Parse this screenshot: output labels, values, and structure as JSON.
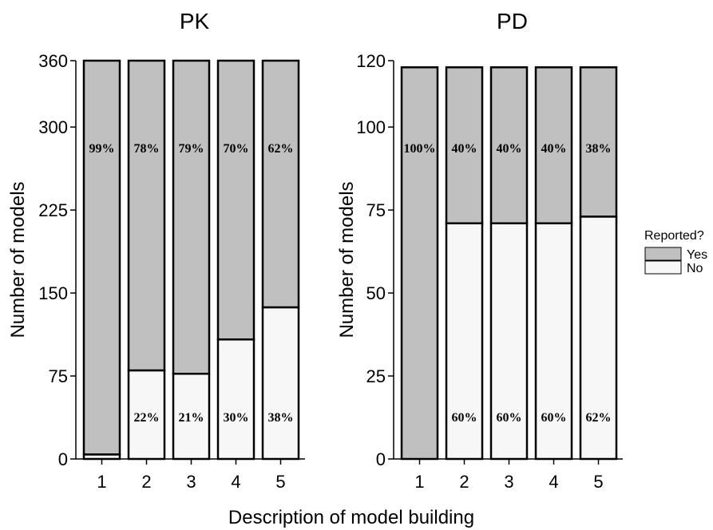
{
  "colors": {
    "yes": "#c0c0c0",
    "no": "#f7f7f7",
    "stroke": "#000000"
  },
  "xlabel": "Description of model building",
  "legend": {
    "title": "Reported?",
    "items": [
      {
        "label": "Yes",
        "color": "#c0c0c0"
      },
      {
        "label": "No",
        "color": "#f7f7f7"
      }
    ],
    "position": "right"
  },
  "chart_data": [
    {
      "type": "bar",
      "stacked": true,
      "title": "PK",
      "ylabel": "Number of models",
      "xlabel": "Description of model building",
      "categories": [
        "1",
        "2",
        "3",
        "4",
        "5"
      ],
      "ylim": [
        0,
        360
      ],
      "yticks": [
        "0",
        "75",
        "150",
        "225",
        "300",
        "360"
      ],
      "series": [
        {
          "name": "No",
          "values": [
            4,
            80,
            77,
            108,
            137
          ],
          "labels": [
            "",
            "22%",
            "21%",
            "30%",
            "38%"
          ]
        },
        {
          "name": "Yes",
          "values": [
            356,
            280,
            283,
            252,
            223
          ],
          "labels": [
            "99%",
            "78%",
            "79%",
            "70%",
            "62%"
          ]
        }
      ]
    },
    {
      "type": "bar",
      "stacked": true,
      "title": "PD",
      "ylabel": "Number of models",
      "xlabel": "Description of model building",
      "categories": [
        "1",
        "2",
        "3",
        "4",
        "5"
      ],
      "ylim": [
        0,
        120
      ],
      "yticks": [
        "0",
        "25",
        "50",
        "75",
        "100",
        "120"
      ],
      "series": [
        {
          "name": "No",
          "values": [
            0,
            71,
            71,
            71,
            73
          ],
          "labels": [
            "",
            "60%",
            "60%",
            "60%",
            "62%"
          ]
        },
        {
          "name": "Yes",
          "values": [
            118,
            47,
            47,
            47,
            45
          ],
          "labels": [
            "100%",
            "40%",
            "40%",
            "40%",
            "38%"
          ]
        }
      ]
    }
  ]
}
